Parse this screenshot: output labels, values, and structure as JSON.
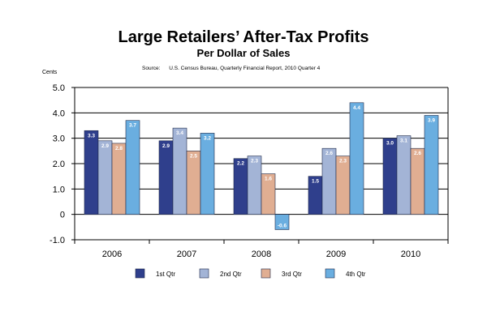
{
  "chart_data": {
    "type": "bar",
    "title": "Large Retailers’ After-Tax Profits",
    "subtitle": "Per Dollar of Sales",
    "source": "Source:      U.S. Census Bureau, Quarterly Financial Report, 2010 Quarter 4",
    "ylabel": "Cents",
    "xlabel": "",
    "ylim": [
      -1.0,
      5.0
    ],
    "yticks": [
      5.0,
      4.0,
      3.0,
      2.0,
      1.0,
      0,
      -1.0
    ],
    "ytick_labels": [
      "5.0",
      "4.0",
      "3.0",
      "2.0",
      "1.0",
      "0",
      "-1.0"
    ],
    "categories": [
      "2006",
      "2007",
      "2008",
      "2009",
      "2010"
    ],
    "series": [
      {
        "name": "1st Qtr",
        "color": "#2F3F8C",
        "values": [
          3.3,
          2.9,
          2.2,
          1.5,
          3.0
        ]
      },
      {
        "name": "2nd Qtr",
        "color": "#A3B4D6",
        "values": [
          2.9,
          3.4,
          2.3,
          2.6,
          3.1
        ]
      },
      {
        "name": "3rd Qtr",
        "color": "#E0AE92",
        "values": [
          2.8,
          2.5,
          1.6,
          2.3,
          2.6
        ]
      },
      {
        "name": "4th Qtr",
        "color": "#6AAEE0",
        "values": [
          3.7,
          3.2,
          -0.6,
          4.4,
          3.9
        ]
      }
    ],
    "data_labels": [
      [
        "3.3",
        "2.9",
        "2.8",
        "3.7"
      ],
      [
        "2.9",
        "3.4",
        "2.5",
        "3.2"
      ],
      [
        "2.2",
        "2.3",
        "1.6",
        "-0.6"
      ],
      [
        "1.5",
        "2.6",
        "2.3",
        "4.4"
      ],
      [
        "3.0",
        "3.1",
        "2.6",
        "3.9"
      ]
    ],
    "grid": true,
    "legend_position": "bottom"
  }
}
